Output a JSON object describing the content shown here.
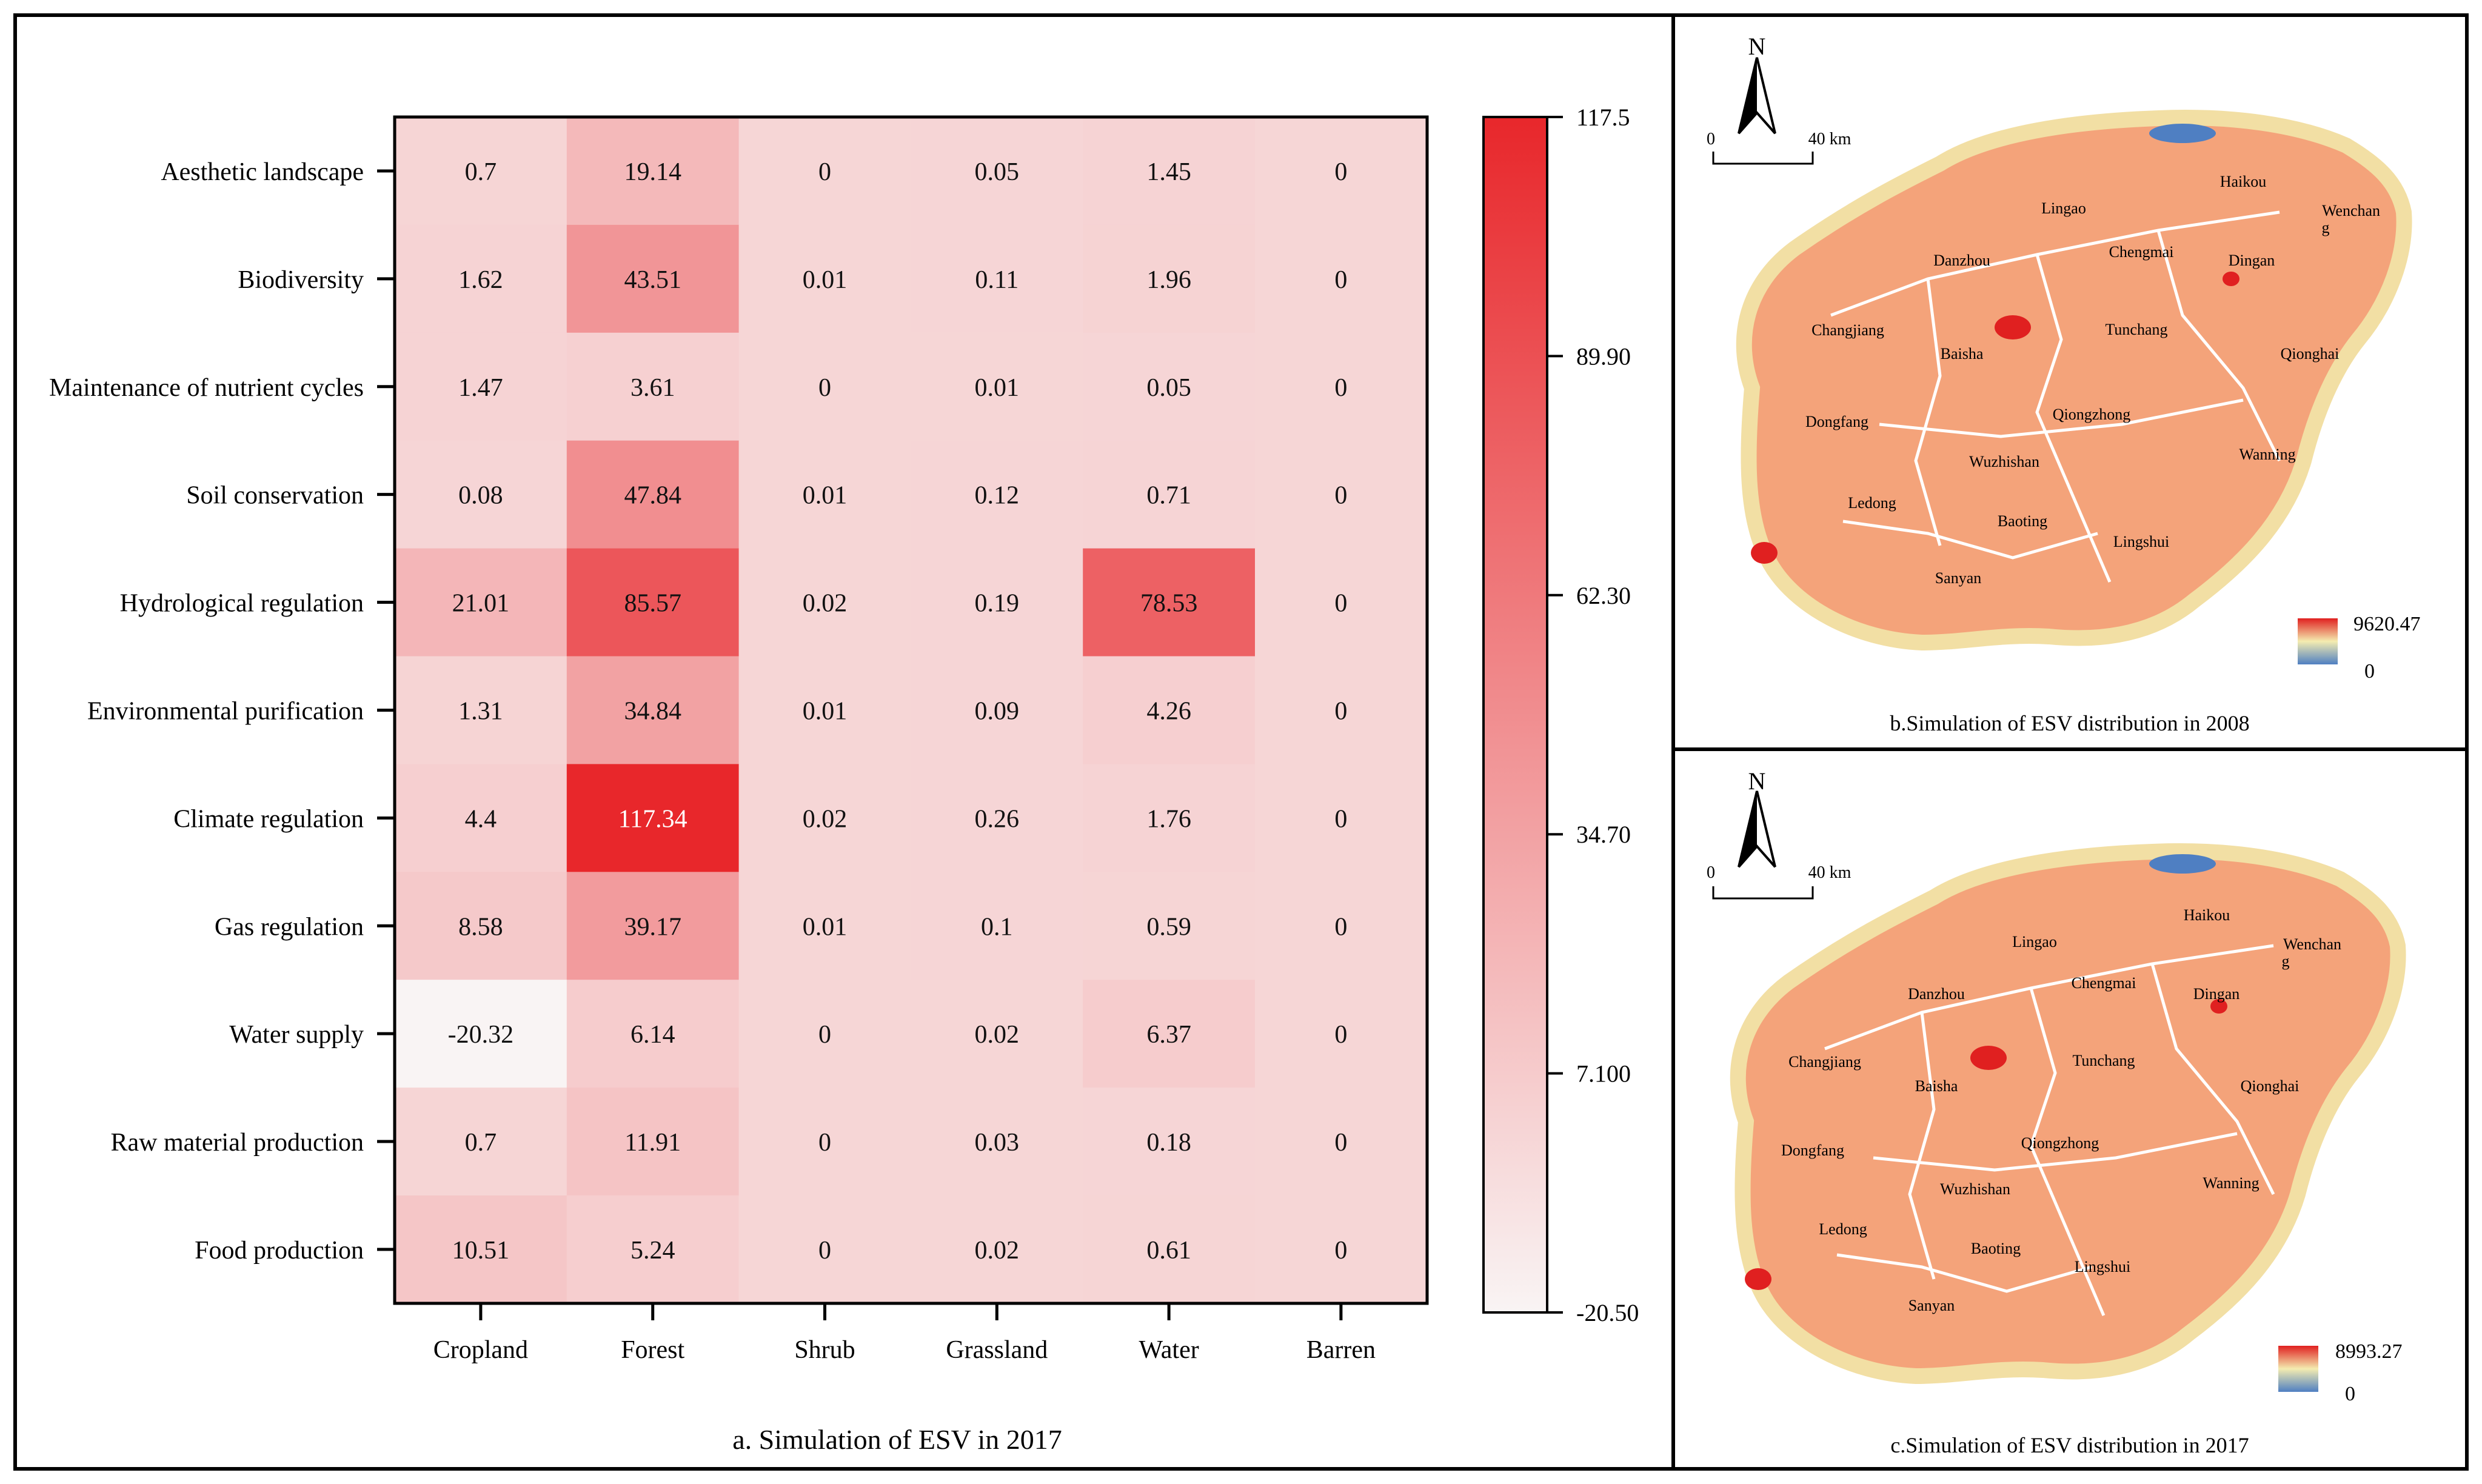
{
  "chart_data": {
    "type": "heatmap",
    "title": "a. Simulation of ESV in 2017",
    "rows": [
      "Aesthetic landscape",
      "Biodiversity",
      "Maintenance of nutrient cycles",
      "Soil conservation",
      "Hydrological regulation",
      "Environmental purification",
      "Climate regulation",
      "Gas regulation",
      "Water supply",
      "Raw material production",
      "Food production"
    ],
    "columns": [
      "Cropland",
      "Forest",
      "Shrub",
      "Grassland",
      "Water",
      "Barren"
    ],
    "values": [
      [
        "0.7",
        "19.14",
        "0",
        "0.05",
        "1.45",
        "0"
      ],
      [
        "1.62",
        "43.51",
        "0.01",
        "0.11",
        "1.96",
        "0"
      ],
      [
        "1.47",
        "3.61",
        "0",
        "0.01",
        "0.05",
        "0"
      ],
      [
        "0.08",
        "47.84",
        "0.01",
        "0.12",
        "0.71",
        "0"
      ],
      [
        "21.01",
        "85.57",
        "0.02",
        "0.19",
        "78.53",
        "0"
      ],
      [
        "1.31",
        "34.84",
        "0.01",
        "0.09",
        "4.26",
        "0"
      ],
      [
        "4.4",
        "117.34",
        "0.02",
        "0.26",
        "1.76",
        "0"
      ],
      [
        "8.58",
        "39.17",
        "0.01",
        "0.1",
        "0.59",
        "0"
      ],
      [
        "-20.32",
        "6.14",
        "0",
        "0.02",
        "6.37",
        "0"
      ],
      [
        "0.7",
        "11.91",
        "0",
        "0.03",
        "0.18",
        "0"
      ],
      [
        "10.51",
        "5.24",
        "0",
        "0.02",
        "0.61",
        "0"
      ]
    ],
    "colorbar": {
      "min": -20.5,
      "max": 117.5,
      "ticks": [
        "117.5",
        "89.90",
        "62.30",
        "34.70",
        "7.100",
        "-20.50"
      ],
      "colors": [
        "#f9f4f4",
        "#e8272b"
      ]
    }
  },
  "maps": {
    "map_2008": {
      "caption": "b.Simulation of ESV distribution in 2008",
      "legend_max": "9620.47",
      "legend_min": "0",
      "north": "N",
      "scale_zero": "0",
      "scale_label": "40 km",
      "places": [
        "Haikou",
        "Wenchan",
        "g",
        "Lingao",
        "Chengmai",
        "Dingan",
        "Danzhou",
        "Changjiang",
        "Tunchang",
        "Qionghai",
        "Baisha",
        "Dongfang",
        "Qiongzhong",
        "Wuzhishan",
        "Wanning",
        "Ledong",
        "Baoting",
        "Lingshui",
        "Sanyan"
      ]
    },
    "map_2017": {
      "caption": "c.Simulation of ESV distribution in 2017",
      "legend_max": "8993.27",
      "legend_min": "0",
      "north": "N",
      "scale_zero": "0",
      "scale_label": "40 km",
      "places": [
        "Haikou",
        "Wenchan",
        "g",
        "Lingao",
        "Chengmai",
        "Dingan",
        "Danzhou",
        "Changjiang",
        "Tunchang",
        "Qionghai",
        "Baisha",
        "Dongfang",
        "Qiongzhong",
        "Wuzhishan",
        "Wanning",
        "Ledong",
        "Baoting",
        "Lingshui",
        "Sanyan"
      ]
    },
    "colors": {
      "land": "#f4a37a",
      "coast": "#f2dfa4",
      "high": "#e02020",
      "low": "#4f7fc2",
      "boundary": "#ffffff"
    }
  }
}
